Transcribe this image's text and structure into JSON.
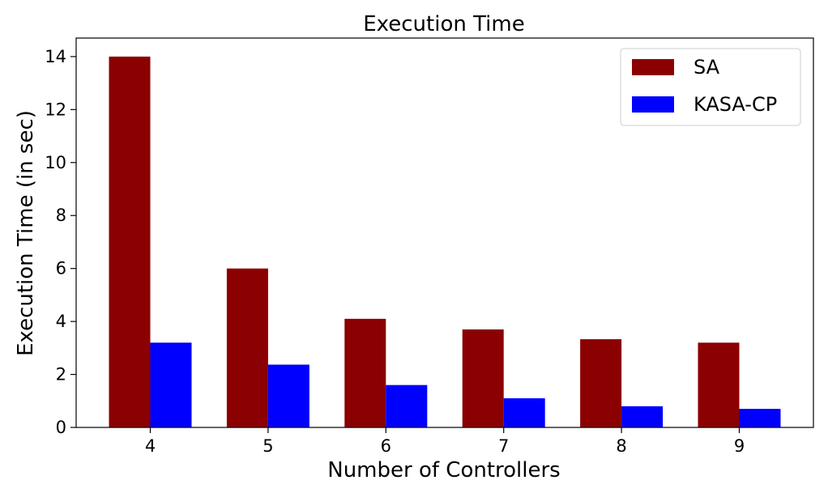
{
  "chart_data": {
    "type": "bar",
    "title": "Execution Time",
    "xlabel": "Number of Controllers",
    "ylabel": "Execution Time (in sec)",
    "categories": [
      "4",
      "5",
      "6",
      "7",
      "8",
      "9"
    ],
    "series": [
      {
        "name": "SA",
        "color": "#8b0000",
        "values": [
          14.0,
          6.0,
          4.1,
          3.7,
          3.33,
          3.2
        ]
      },
      {
        "name": "KASA-CP",
        "color": "#0000ff",
        "values": [
          3.2,
          2.37,
          1.6,
          1.1,
          0.8,
          0.7
        ]
      }
    ],
    "yticks": [
      "0",
      "2",
      "4",
      "6",
      "8",
      "10",
      "12",
      "14"
    ],
    "ylim": [
      0,
      14.7
    ],
    "grid": false,
    "legend": "top-right"
  }
}
